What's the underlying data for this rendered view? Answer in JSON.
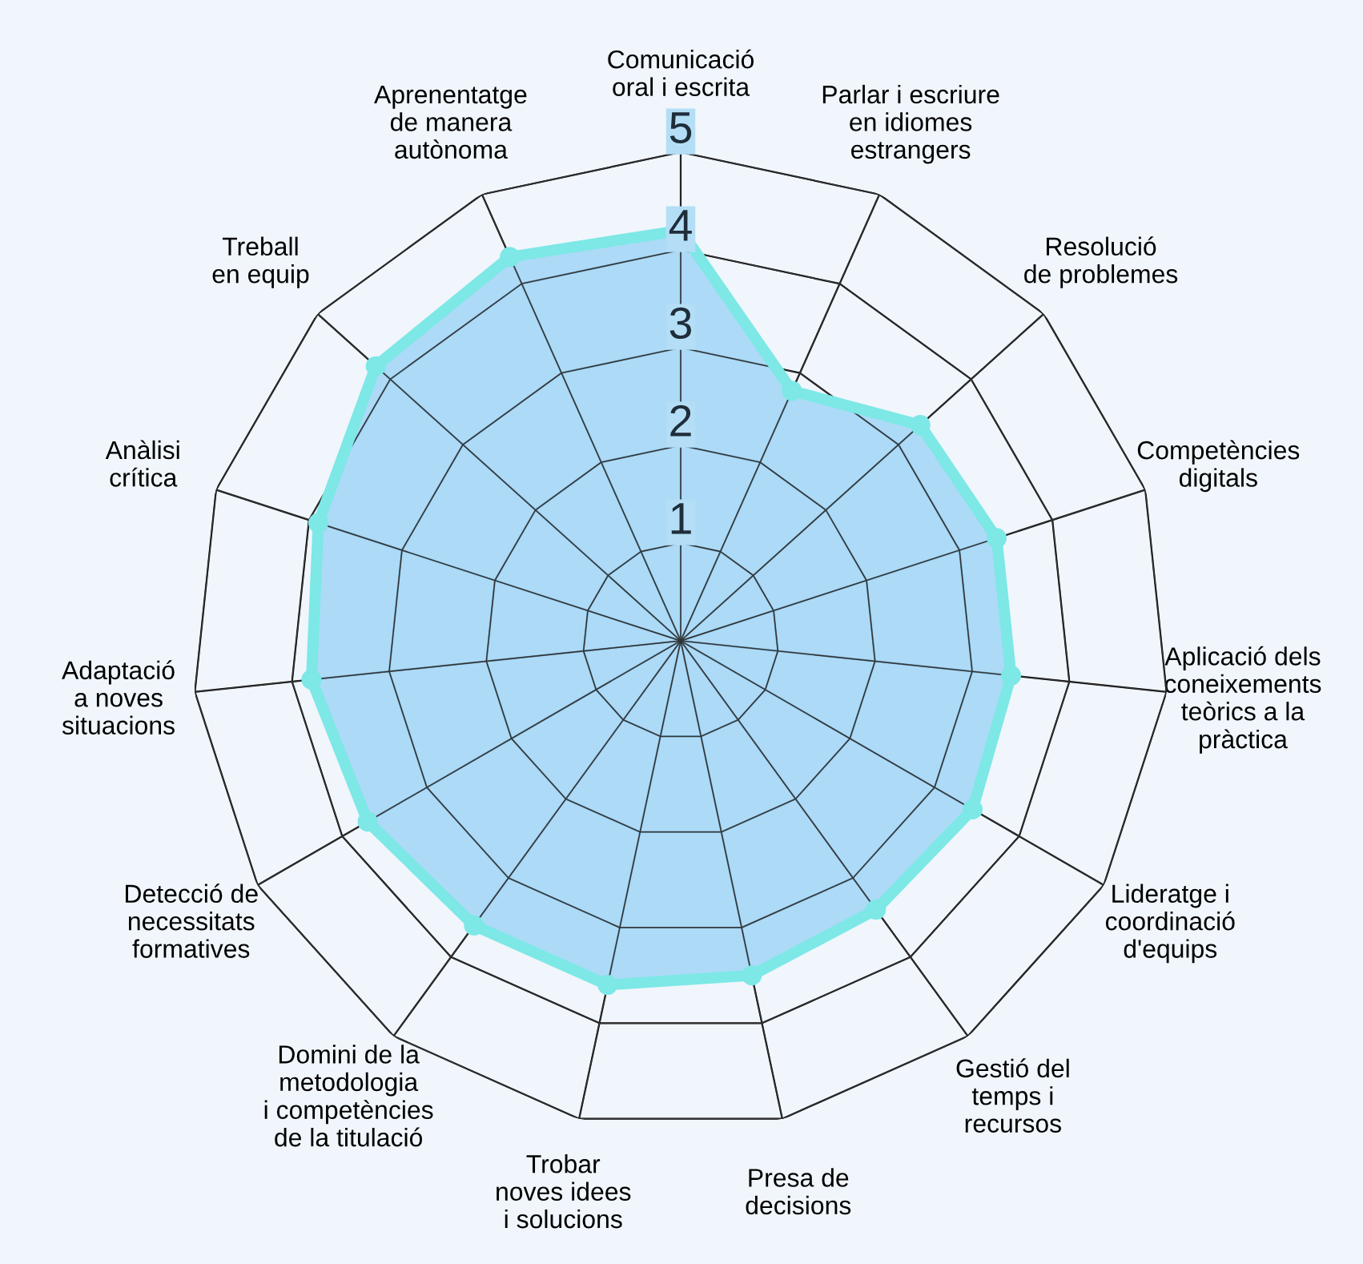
{
  "chart_data": {
    "type": "radar",
    "categories": [
      "Comunicació\noral i escrita",
      "Parlar i escriure\nen idiomes\nestrangers",
      "Resolució\nde problemes",
      "Competències\ndigitals",
      "Aplicació dels\nconeixements\nteòrics a la\npràctica",
      "Lideratge i\ncoordinació\nd'equips",
      "Gestió del\ntemps i\nrecursos",
      "Presa de\ndecisions",
      "Trobar\nnoves idees\ni solucions",
      "Domini de la\nmetodologia\ni competències\nde la titulació",
      "Detecció de\nnecessitats\nformatives",
      "Adaptació\na noves\nsituacions",
      "Anàlisi\ncrítica",
      "Treball\nen equip",
      "Aprenentatge\nde manera\nautònoma"
    ],
    "series": [
      {
        "color": "#7de8e6",
        "values": [
          4.2,
          2.8,
          3.3,
          3.4,
          3.4,
          3.45,
          3.4,
          3.5,
          3.6,
          3.6,
          3.7,
          3.8,
          3.9,
          4.2,
          4.3
        ]
      }
    ],
    "ylim": [
      0,
      5
    ],
    "yticks": [
      1,
      2,
      3,
      4,
      5
    ],
    "marker": "circle",
    "grid": true,
    "legend": false
  }
}
